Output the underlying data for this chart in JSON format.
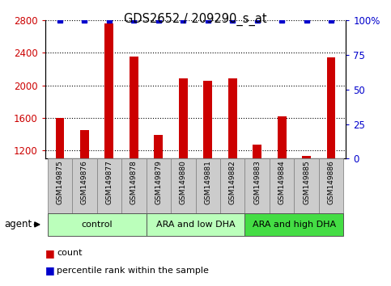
{
  "title": "GDS2652 / 209290_s_at",
  "samples": [
    "GSM149875",
    "GSM149876",
    "GSM149877",
    "GSM149878",
    "GSM149879",
    "GSM149880",
    "GSM149881",
    "GSM149882",
    "GSM149883",
    "GSM149884",
    "GSM149885",
    "GSM149886"
  ],
  "bar_values": [
    1600,
    1450,
    2760,
    2350,
    1390,
    2080,
    2060,
    2080,
    1270,
    1620,
    1130,
    2340
  ],
  "percentile_values": [
    100,
    100,
    100,
    100,
    100,
    100,
    100,
    100,
    100,
    100,
    100,
    100
  ],
  "bar_color": "#cc0000",
  "dot_color": "#0000cc",
  "ylim_left": [
    1100,
    2800
  ],
  "ylim_right": [
    0,
    100
  ],
  "yticks_left": [
    1200,
    1600,
    2000,
    2400,
    2800
  ],
  "yticks_right": [
    0,
    25,
    50,
    75,
    100
  ],
  "ytick_labels_right": [
    "0",
    "25",
    "50",
    "75",
    "100%"
  ],
  "groups": [
    {
      "label": "control",
      "start": 0,
      "end": 3,
      "color": "#bbffbb"
    },
    {
      "label": "ARA and low DHA",
      "start": 4,
      "end": 7,
      "color": "#bbffbb"
    },
    {
      "label": "ARA and high DHA",
      "start": 8,
      "end": 11,
      "color": "#44dd44"
    }
  ],
  "agent_label": "agent",
  "legend_bar_label": "count",
  "legend_dot_label": "percentile rank within the sample",
  "bg_color": "#ffffff",
  "tick_label_color_left": "#cc0000",
  "tick_label_color_right": "#0000cc",
  "grid_color": "#000000",
  "sample_bg_color": "#cccccc",
  "bar_width": 0.35
}
